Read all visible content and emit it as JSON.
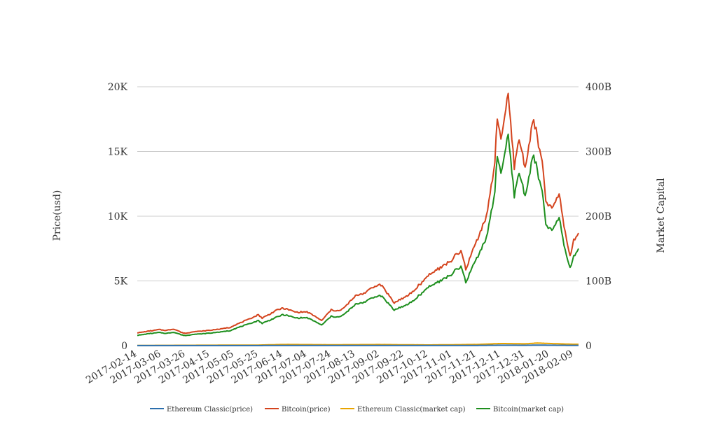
{
  "chart_data": {
    "type": "line",
    "x_start": "2017-02-14",
    "x_end": "2018-02-13",
    "x_tick_labels": [
      "2017-02-14",
      "2017-03-06",
      "2017-03-26",
      "2017-04-15",
      "2017-05-05",
      "2017-05-25",
      "2017-06-14",
      "2017-07-04",
      "2017-07-24",
      "2017-08-13",
      "2017-09-02",
      "2017-09-22",
      "2017-10-12",
      "2017-11-01",
      "2017-11-21",
      "2017-12-11",
      "2017-12-31",
      "2018-01-20",
      "2018-02-09"
    ],
    "y_left": {
      "label": "Price(usd)",
      "range": [
        0,
        20000
      ],
      "ticks": [
        0,
        5000,
        10000,
        15000,
        20000
      ],
      "tick_labels": [
        "0",
        "5K",
        "10K",
        "15K",
        "20K"
      ]
    },
    "y_right": {
      "label": "Market Capital",
      "range": [
        0,
        400000000000
      ],
      "ticks": [
        0,
        100000000000,
        200000000000,
        300000000000,
        400000000000
      ],
      "tick_labels": [
        "0",
        "100B",
        "200B",
        "300B",
        "400B"
      ]
    },
    "grid": "horizontal",
    "legend_position": "bottom",
    "series": [
      {
        "name": "Ethereum Classic(price)",
        "axis": "left",
        "color": "#2c6fad",
        "points": [
          [
            "2017-02-14",
            3
          ],
          [
            "2017-05-25",
            6
          ],
          [
            "2017-06-14",
            18
          ],
          [
            "2017-07-24",
            15
          ],
          [
            "2017-09-02",
            17
          ],
          [
            "2017-10-12",
            11
          ],
          [
            "2017-11-21",
            18
          ],
          [
            "2017-12-11",
            33
          ],
          [
            "2017-12-31",
            28
          ],
          [
            "2018-01-10",
            40
          ],
          [
            "2018-01-20",
            33
          ],
          [
            "2018-02-09",
            20
          ],
          [
            "2018-02-13",
            22
          ]
        ]
      },
      {
        "name": "Bitcoin(price)",
        "axis": "left",
        "color": "#d4441e",
        "points": [
          [
            "2017-02-14",
            995
          ],
          [
            "2017-02-24",
            1120
          ],
          [
            "2017-03-04",
            1250
          ],
          [
            "2017-03-10",
            1180
          ],
          [
            "2017-03-16",
            1300
          ],
          [
            "2017-03-22",
            1040
          ],
          [
            "2017-03-26",
            950
          ],
          [
            "2017-04-01",
            1080
          ],
          [
            "2017-04-15",
            1180
          ],
          [
            "2017-05-01",
            1400
          ],
          [
            "2017-05-10",
            1750
          ],
          [
            "2017-05-25",
            2400
          ],
          [
            "2017-05-28",
            2100
          ],
          [
            "2017-06-10",
            2800
          ],
          [
            "2017-06-14",
            2900
          ],
          [
            "2017-06-24",
            2600
          ],
          [
            "2017-07-04",
            2600
          ],
          [
            "2017-07-16",
            1950
          ],
          [
            "2017-07-24",
            2750
          ],
          [
            "2017-08-01",
            2700
          ],
          [
            "2017-08-13",
            3800
          ],
          [
            "2017-08-20",
            4100
          ],
          [
            "2017-09-01",
            4700
          ],
          [
            "2017-09-05",
            4500
          ],
          [
            "2017-09-14",
            3300
          ],
          [
            "2017-09-22",
            3700
          ],
          [
            "2017-10-01",
            4300
          ],
          [
            "2017-10-12",
            5400
          ],
          [
            "2017-10-20",
            5900
          ],
          [
            "2017-11-01",
            6700
          ],
          [
            "2017-11-08",
            7300
          ],
          [
            "2017-11-12",
            5900
          ],
          [
            "2017-11-21",
            8100
          ],
          [
            "2017-11-29",
            9900
          ],
          [
            "2017-12-06",
            14000
          ],
          [
            "2017-12-08",
            17800
          ],
          [
            "2017-12-11",
            16000
          ],
          [
            "2017-12-17",
            19500
          ],
          [
            "2017-12-22",
            14000
          ],
          [
            "2017-12-26",
            16000
          ],
          [
            "2017-12-31",
            13800
          ],
          [
            "2018-01-07",
            17500
          ],
          [
            "2018-01-14",
            14200
          ],
          [
            "2018-01-17",
            11200
          ],
          [
            "2018-01-22",
            10500
          ],
          [
            "2018-01-28",
            11600
          ],
          [
            "2018-02-02",
            8800
          ],
          [
            "2018-02-06",
            6900
          ],
          [
            "2018-02-09",
            8100
          ],
          [
            "2018-02-13",
            8700
          ]
        ]
      },
      {
        "name": "Ethereum Classic(market cap)",
        "axis": "right",
        "color": "#e8a400",
        "points": [
          [
            "2017-02-14",
            300000000
          ],
          [
            "2017-05-25",
            900000000
          ],
          [
            "2017-06-14",
            1800000000
          ],
          [
            "2017-07-24",
            1400000000
          ],
          [
            "2017-09-02",
            1700000000
          ],
          [
            "2017-10-12",
            1100000000
          ],
          [
            "2017-11-21",
            1800000000
          ],
          [
            "2017-12-11",
            3300000000
          ],
          [
            "2017-12-31",
            2800000000
          ],
          [
            "2018-01-10",
            4000000000
          ],
          [
            "2018-01-20",
            3300000000
          ],
          [
            "2018-02-09",
            2100000000
          ],
          [
            "2018-02-13",
            2200000000
          ]
        ]
      },
      {
        "name": "Bitcoin(market cap)",
        "axis": "right",
        "color": "#1e8f1e",
        "points": [
          [
            "2017-02-14",
            16000000000
          ],
          [
            "2017-02-24",
            18500000000
          ],
          [
            "2017-03-04",
            20500000000
          ],
          [
            "2017-03-10",
            19000000000
          ],
          [
            "2017-03-16",
            21000000000
          ],
          [
            "2017-03-22",
            17000000000
          ],
          [
            "2017-03-26",
            15500000000
          ],
          [
            "2017-04-01",
            17500000000
          ],
          [
            "2017-04-15",
            19300000000
          ],
          [
            "2017-05-01",
            23000000000
          ],
          [
            "2017-05-10",
            29000000000
          ],
          [
            "2017-05-25",
            39000000000
          ],
          [
            "2017-05-28",
            34000000000
          ],
          [
            "2017-06-10",
            45000000000
          ],
          [
            "2017-06-14",
            48000000000
          ],
          [
            "2017-06-24",
            43000000000
          ],
          [
            "2017-07-04",
            43000000000
          ],
          [
            "2017-07-16",
            32000000000
          ],
          [
            "2017-07-24",
            45000000000
          ],
          [
            "2017-08-01",
            44500000000
          ],
          [
            "2017-08-13",
            63000000000
          ],
          [
            "2017-08-20",
            68000000000
          ],
          [
            "2017-09-01",
            77000000000
          ],
          [
            "2017-09-05",
            74000000000
          ],
          [
            "2017-09-14",
            55000000000
          ],
          [
            "2017-09-22",
            61000000000
          ],
          [
            "2017-10-01",
            71000000000
          ],
          [
            "2017-10-12",
            90000000000
          ],
          [
            "2017-10-20",
            98000000000
          ],
          [
            "2017-11-01",
            112000000000
          ],
          [
            "2017-11-08",
            122000000000
          ],
          [
            "2017-11-12",
            98000000000
          ],
          [
            "2017-11-21",
            135000000000
          ],
          [
            "2017-11-29",
            165000000000
          ],
          [
            "2017-12-06",
            235000000000
          ],
          [
            "2017-12-08",
            297000000000
          ],
          [
            "2017-12-11",
            267000000000
          ],
          [
            "2017-12-17",
            327000000000
          ],
          [
            "2017-12-22",
            235000000000
          ],
          [
            "2017-12-26",
            268000000000
          ],
          [
            "2017-12-31",
            232000000000
          ],
          [
            "2018-01-07",
            295000000000
          ],
          [
            "2018-01-14",
            238000000000
          ],
          [
            "2018-01-17",
            188000000000
          ],
          [
            "2018-01-22",
            176000000000
          ],
          [
            "2018-01-28",
            196000000000
          ],
          [
            "2018-02-02",
            148000000000
          ],
          [
            "2018-02-06",
            120000000000
          ],
          [
            "2018-02-09",
            137000000000
          ],
          [
            "2018-02-13",
            150000000000
          ]
        ]
      }
    ]
  }
}
